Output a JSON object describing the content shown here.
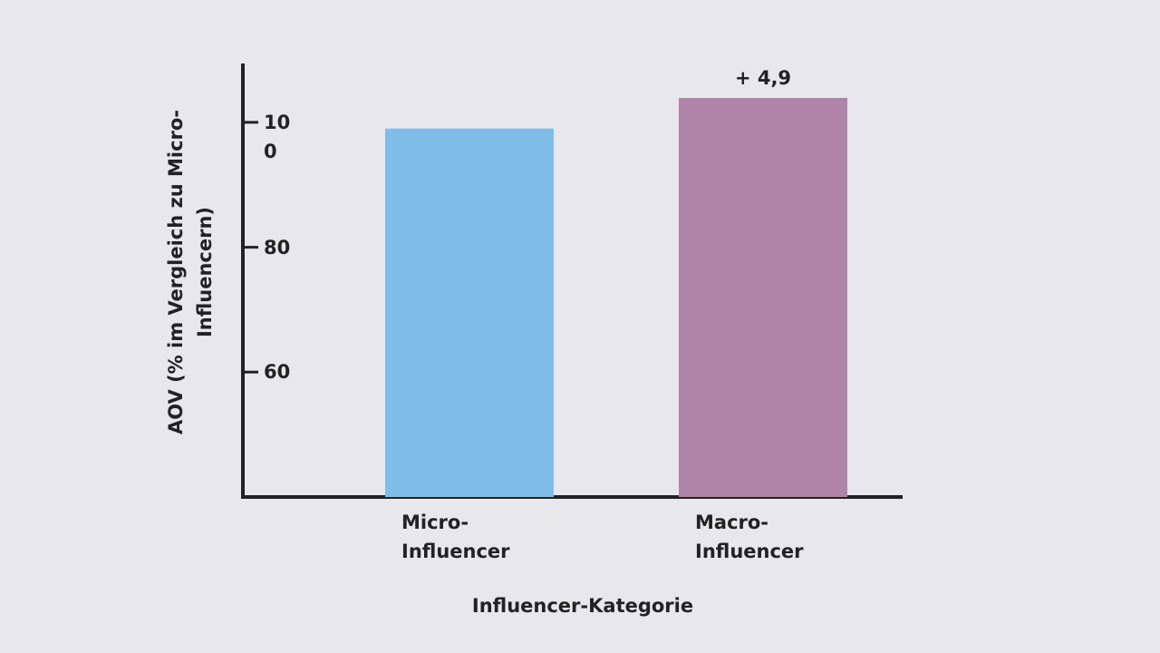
{
  "chart_data": {
    "type": "bar",
    "x_label": "Influencer-Kategorie",
    "y_label": "AOV (% im Vergleich zu Micro-Influencern)",
    "categories": [
      "Micro-Influencer",
      "Macro-Influencer"
    ],
    "values": [
      99,
      103.9
    ],
    "colors": [
      "#80bce8",
      "#b084a8"
    ],
    "annotation": "+ 4,9",
    "ylim": [
      40,
      110
    ],
    "yticks": [
      60,
      80,
      100
    ],
    "grid": false
  }
}
